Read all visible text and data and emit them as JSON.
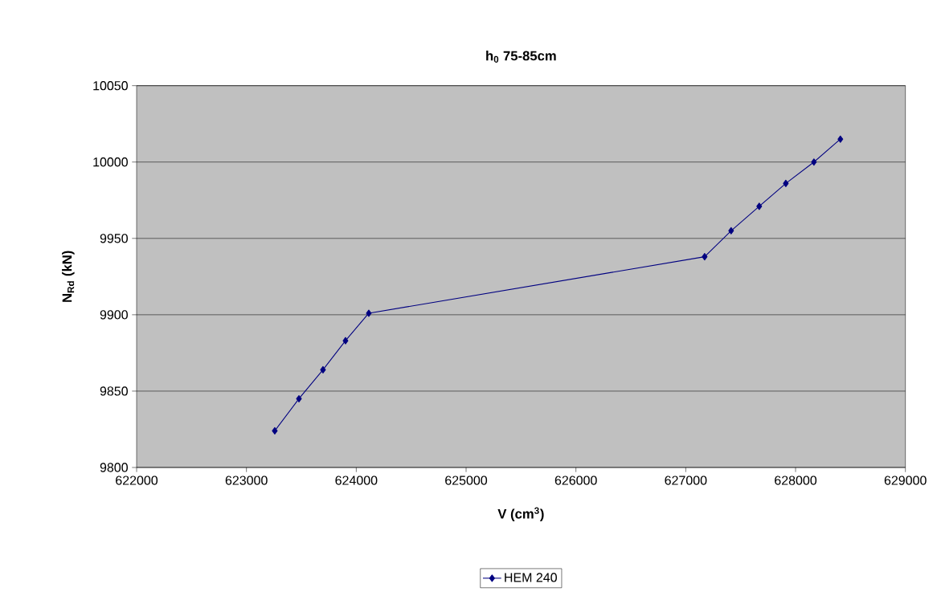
{
  "chart_data": {
    "type": "line",
    "title": "h$_{0}$ 75-85cm",
    "xlabel": "V (cm$^{3}$)",
    "ylabel": "N$_{Rd}$ (kN)",
    "x": [
      623258,
      623478,
      623697,
      623902,
      624114,
      627172,
      627413,
      627669,
      627911,
      628167,
      628408
    ],
    "series": [
      {
        "name": "HEM 240",
        "color": "#000080",
        "values": [
          9824,
          9845,
          9864,
          9883,
          9901,
          9938,
          9955,
          9971,
          9986,
          10000,
          10015
        ]
      }
    ],
    "xlim": [
      622000,
      629000
    ],
    "xticks": [
      622000,
      623000,
      624000,
      625000,
      626000,
      627000,
      628000,
      629000
    ],
    "ylim": [
      9800,
      10050
    ],
    "yticks": [
      9800,
      9850,
      9900,
      9950,
      10000,
      10050
    ],
    "grid": "y",
    "legend": "bottom",
    "marker": "diamond",
    "line_style": "solid"
  }
}
